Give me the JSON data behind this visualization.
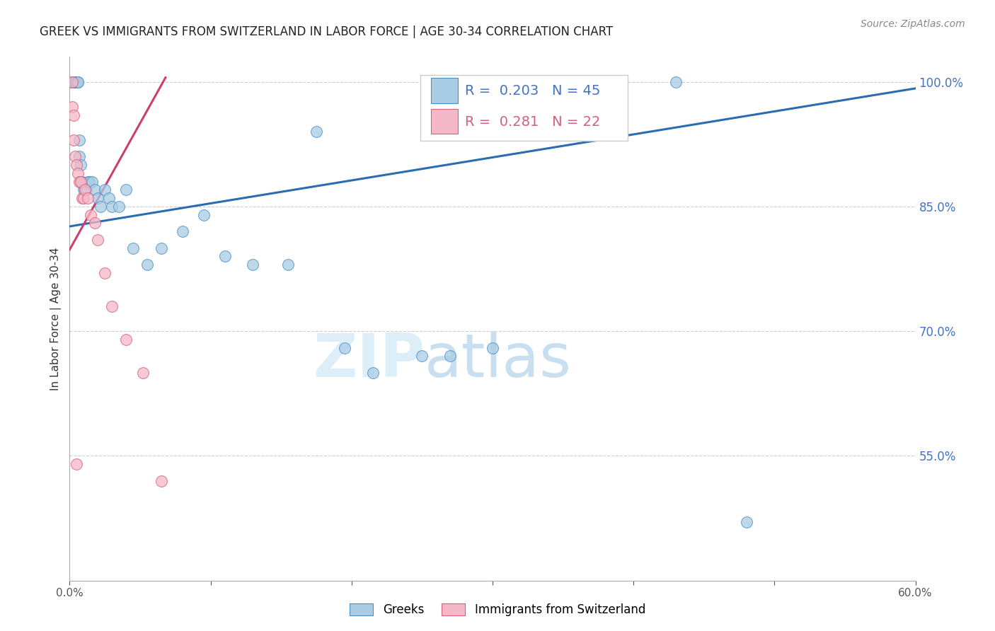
{
  "title": "GREEK VS IMMIGRANTS FROM SWITZERLAND IN LABOR FORCE | AGE 30-34 CORRELATION CHART",
  "source": "Source: ZipAtlas.com",
  "ylabel": "In Labor Force | Age 30-34",
  "legend_labels": [
    "Greeks",
    "Immigrants from Switzerland"
  ],
  "r_blue": 0.203,
  "n_blue": 45,
  "r_pink": 0.281,
  "n_pink": 22,
  "xlim": [
    0.0,
    0.6
  ],
  "ylim": [
    0.4,
    1.03
  ],
  "ytick_values": [
    0.55,
    0.7,
    0.85,
    1.0
  ],
  "ytick_labels": [
    "55.0%",
    "70.0%",
    "85.0%",
    "100.0%"
  ],
  "blue_color": "#a8cce4",
  "pink_color": "#f4b8c8",
  "blue_edge_color": "#4a90c4",
  "pink_edge_color": "#d4607a",
  "blue_line_color": "#2b6cb0",
  "pink_line_color": "#c94070",
  "watermark_color": "#ddeef8",
  "blue_x": [
    0.002,
    0.002,
    0.003,
    0.003,
    0.004,
    0.004,
    0.005,
    0.005,
    0.006,
    0.006,
    0.007,
    0.007,
    0.008,
    0.008,
    0.009,
    0.01,
    0.011,
    0.012,
    0.013,
    0.014,
    0.016,
    0.018,
    0.02,
    0.022,
    0.025,
    0.028,
    0.03,
    0.035,
    0.04,
    0.045,
    0.055,
    0.065,
    0.08,
    0.095,
    0.11,
    0.13,
    0.155,
    0.175,
    0.195,
    0.215,
    0.25,
    0.27,
    0.3,
    0.43,
    0.48
  ],
  "blue_y": [
    1.0,
    1.0,
    1.0,
    1.0,
    1.0,
    1.0,
    1.0,
    1.0,
    1.0,
    1.0,
    0.93,
    0.91,
    0.9,
    0.88,
    0.88,
    0.87,
    0.87,
    0.87,
    0.88,
    0.88,
    0.88,
    0.87,
    0.86,
    0.85,
    0.87,
    0.86,
    0.85,
    0.85,
    0.87,
    0.8,
    0.78,
    0.8,
    0.82,
    0.84,
    0.79,
    0.78,
    0.78,
    0.94,
    0.68,
    0.65,
    0.67,
    0.67,
    0.68,
    1.0,
    0.47
  ],
  "pink_x": [
    0.002,
    0.002,
    0.003,
    0.003,
    0.004,
    0.005,
    0.006,
    0.007,
    0.008,
    0.009,
    0.01,
    0.011,
    0.013,
    0.015,
    0.018,
    0.02,
    0.025,
    0.03,
    0.04,
    0.052,
    0.065,
    0.005
  ],
  "pink_y": [
    1.0,
    0.97,
    0.96,
    0.93,
    0.91,
    0.9,
    0.89,
    0.88,
    0.88,
    0.86,
    0.86,
    0.87,
    0.86,
    0.84,
    0.83,
    0.81,
    0.77,
    0.73,
    0.69,
    0.65,
    0.52,
    0.54
  ],
  "blue_line_x0": 0.0,
  "blue_line_x1": 0.6,
  "blue_line_y0": 0.826,
  "blue_line_y1": 0.992,
  "pink_line_x0": 0.0,
  "pink_line_x1": 0.068,
  "pink_line_y0": 0.798,
  "pink_line_y1": 1.005
}
